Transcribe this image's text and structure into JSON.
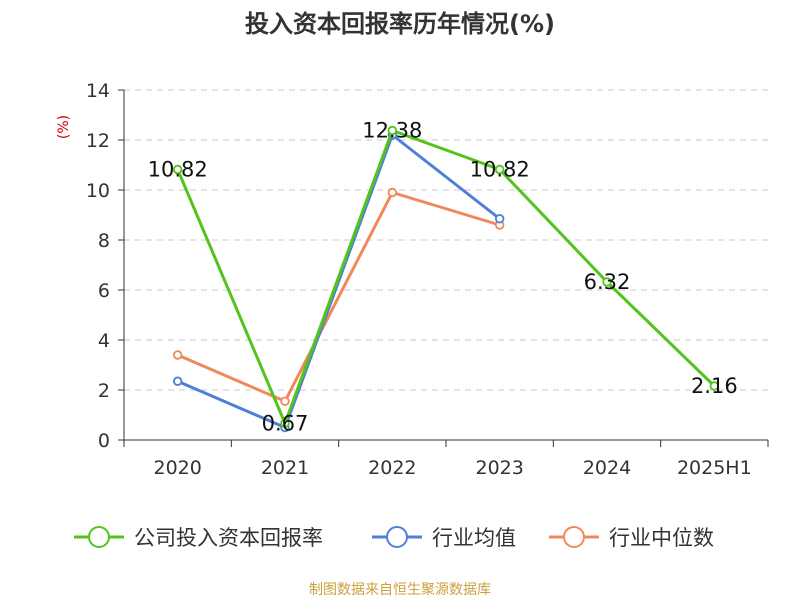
{
  "chart_data": {
    "type": "line",
    "title": "投入资本回报率历年情况(%)",
    "ylabel": "(%)",
    "categories": [
      "2020",
      "2021",
      "2022",
      "2023",
      "2024",
      "2025H1"
    ],
    "ylim": [
      0,
      14
    ],
    "yticks": [
      0,
      2,
      4,
      6,
      8,
      10,
      12,
      14
    ],
    "grid": true,
    "legend_position": "bottom",
    "series": [
      {
        "name": "公司投入资本回报率",
        "color": "#52c41a",
        "values": [
          10.82,
          0.67,
          12.38,
          10.82,
          6.32,
          2.16
        ],
        "labels": [
          "10.82",
          "0.67",
          "12.38",
          "10.82",
          "6.32",
          "2.16"
        ]
      },
      {
        "name": "行业均值",
        "color": "#4e7fd9",
        "values": [
          2.35,
          0.5,
          12.2,
          8.85,
          null,
          null
        ]
      },
      {
        "name": "行业中位数",
        "color": "#f0895a",
        "values": [
          3.4,
          1.55,
          9.9,
          8.6,
          null,
          null
        ]
      }
    ]
  },
  "footer": {
    "source": "制图数据来自恒生聚源数据库",
    "color": "#c8a23c"
  }
}
